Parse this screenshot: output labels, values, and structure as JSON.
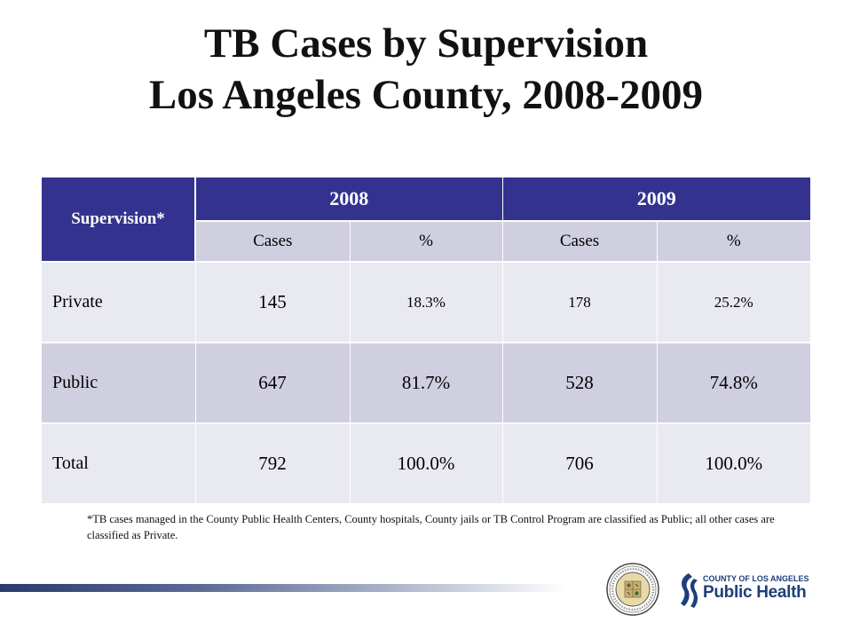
{
  "title": {
    "line1": "TB Cases by Supervision",
    "line2": "Los Angeles County, 2008-2009"
  },
  "table": {
    "corner_header": "Supervision*",
    "years": [
      "2008",
      "2009"
    ],
    "subheaders": [
      "Cases",
      "%",
      "Cases",
      "%"
    ],
    "rows": [
      {
        "label": "Private",
        "cells": [
          "145",
          "18.3%",
          "178",
          "25.2%"
        ]
      },
      {
        "label": "Public",
        "cells": [
          "647",
          "81.7%",
          "528",
          "74.8%"
        ]
      },
      {
        "label": "Total",
        "cells": [
          "792",
          "100.0%",
          "706",
          "100.0%"
        ]
      }
    ]
  },
  "footnote": "*TB cases managed in the County Public Health Centers, County hospitals, County jails or TB Control Program are classified as Public; all other cases are classified as Private.",
  "logos": {
    "seal_icon": "county-seal-icon",
    "ph_small": "COUNTY OF LOS ANGELES",
    "ph_big": "Public Health"
  },
  "colors": {
    "header_bg": "#33338f",
    "subheader_bg": "#cfcfe0",
    "row_light": "#e9e9f1",
    "row_dark": "#cfcfe0",
    "brand_blue": "#1d3f7a"
  }
}
